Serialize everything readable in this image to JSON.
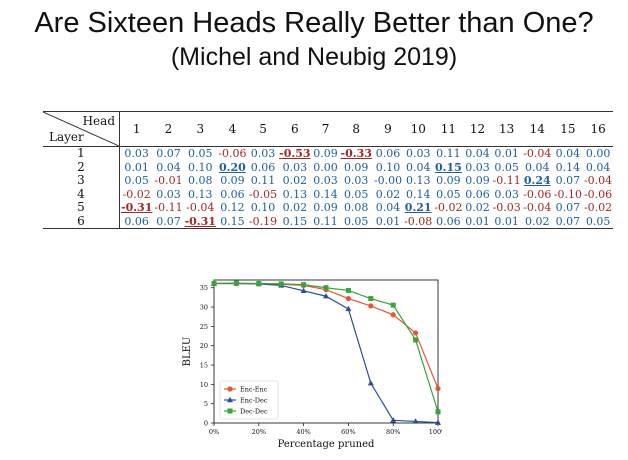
{
  "slide": {
    "title": "Are Sixteen Heads Really Better than One?",
    "subtitle": "(Michel and Neubig 2019)"
  },
  "table": {
    "corner_col_label": "Head",
    "corner_row_label": "Layer",
    "columns": [
      "1",
      "2",
      "3",
      "4",
      "5",
      "6",
      "7",
      "8",
      "9",
      "10",
      "11",
      "12",
      "13",
      "14",
      "15",
      "16"
    ],
    "rows": [
      {
        "layer": "1",
        "values": [
          "0.03",
          "0.07",
          "0.05",
          "-0.06",
          "0.03",
          "-0.53",
          "0.09",
          "-0.33",
          "0.06",
          "0.03",
          "0.11",
          "0.04",
          "0.01",
          "-0.04",
          "0.04",
          "0.00"
        ],
        "highlight": [
          5,
          7
        ]
      },
      {
        "layer": "2",
        "values": [
          "0.01",
          "0.04",
          "0.10",
          "0.20",
          "0.06",
          "0.03",
          "0.00",
          "0.09",
          "0.10",
          "0.04",
          "0.15",
          "0.03",
          "0.05",
          "0.04",
          "0.14",
          "0.04"
        ],
        "highlight": [
          3,
          10
        ]
      },
      {
        "layer": "3",
        "values": [
          "0.05",
          "-0.01",
          "0.08",
          "0.09",
          "0.11",
          "0.02",
          "0.03",
          "0.03",
          "-0.00",
          "0.13",
          "0.09",
          "0.09",
          "-0.11",
          "0.24",
          "0.07",
          "-0.04"
        ],
        "highlight": [
          13
        ]
      },
      {
        "layer": "4",
        "values": [
          "-0.02",
          "0.03",
          "0.13",
          "0.06",
          "-0.05",
          "0.13",
          "0.14",
          "0.05",
          "0.02",
          "0.14",
          "0.05",
          "0.06",
          "0.03",
          "-0.06",
          "-0.10",
          "-0.06"
        ],
        "highlight": []
      },
      {
        "layer": "5",
        "values": [
          "-0.31",
          "-0.11",
          "-0.04",
          "0.12",
          "0.10",
          "0.02",
          "0.09",
          "0.08",
          "0.04",
          "0.21",
          "-0.02",
          "0.02",
          "-0.03",
          "-0.04",
          "0.07",
          "-0.02"
        ],
        "highlight": [
          0,
          9
        ]
      },
      {
        "layer": "6",
        "values": [
          "0.06",
          "0.07",
          "-0.31",
          "0.15",
          "-0.19",
          "0.15",
          "0.11",
          "0.05",
          "0.01",
          "-0.08",
          "0.06",
          "0.01",
          "0.01",
          "0.02",
          "0.07",
          "0.05"
        ],
        "highlight": [
          2
        ]
      }
    ],
    "colors": {
      "positive": "#1f5f99",
      "negative": "#a02828"
    }
  },
  "chart_data": {
    "type": "line",
    "xlabel": "Percentage pruned",
    "ylabel": "BLEU",
    "xlim": [
      0,
      100
    ],
    "ylim": [
      0,
      37
    ],
    "x_ticks": [
      "0%",
      "20%",
      "40%",
      "60%",
      "80%",
      "100%"
    ],
    "y_ticks": [
      "0",
      "5",
      "10",
      "15",
      "20",
      "25",
      "30",
      "35"
    ],
    "legend_position": "bottom-left",
    "grid": false,
    "series": [
      {
        "name": "Enc-Enc",
        "color": "#e8533a",
        "marker": "circle",
        "x": [
          0,
          10,
          20,
          30,
          40,
          50,
          60,
          70,
          80,
          90,
          100
        ],
        "y": [
          36.1,
          36.1,
          36.0,
          35.9,
          35.6,
          34.5,
          32.2,
          30.3,
          28.0,
          23.3,
          8.9
        ]
      },
      {
        "name": "Enc-Dec",
        "color": "#2a4d9c",
        "marker": "triangle",
        "x": [
          0,
          10,
          20,
          30,
          40,
          50,
          60,
          70,
          80,
          90,
          100
        ],
        "y": [
          36.1,
          36.1,
          36.0,
          35.6,
          34.2,
          32.8,
          29.5,
          10.3,
          0.7,
          0.4,
          0.1
        ]
      },
      {
        "name": "Dec-Dec",
        "color": "#3aa33a",
        "marker": "square",
        "x": [
          0,
          10,
          20,
          30,
          40,
          50,
          60,
          70,
          80,
          90,
          100
        ],
        "y": [
          36.1,
          36.2,
          36.1,
          36.0,
          35.8,
          35.0,
          34.3,
          32.2,
          30.5,
          21.5,
          2.9
        ]
      }
    ]
  }
}
